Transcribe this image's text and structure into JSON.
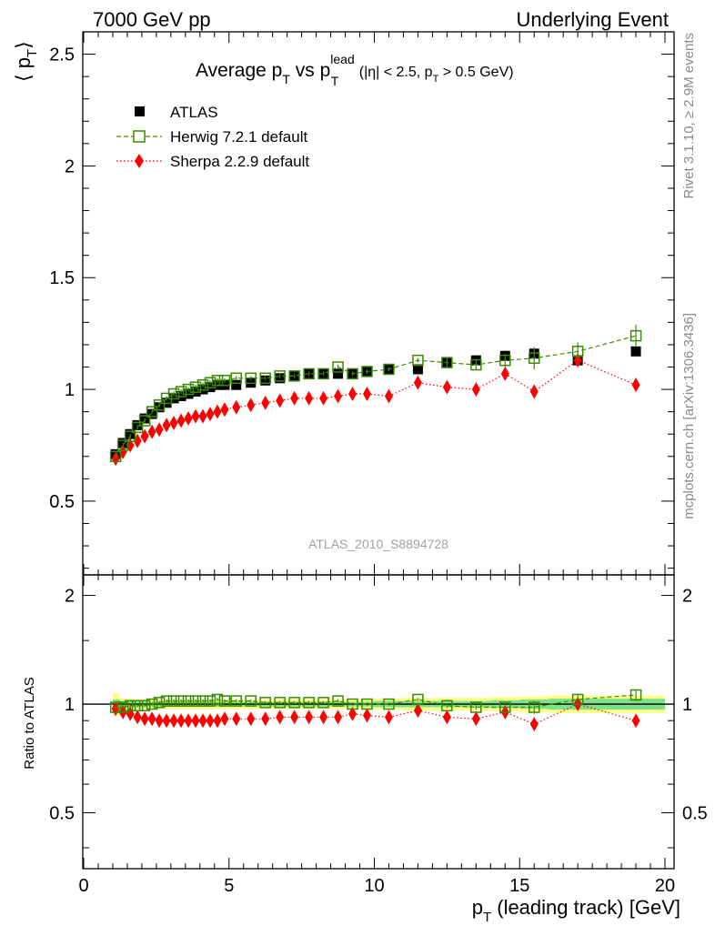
{
  "header": {
    "left": "7000 GeV pp",
    "right": "Underlying Event"
  },
  "side_labels": {
    "rivet": "Rivet 3.1.10, ≥ 2.9M events",
    "mcplots": "mcplots.cern.ch [arXiv:1306.3436]"
  },
  "analysis_id": "ATLAS_2010_S8894728",
  "colors": {
    "atlas": "#000000",
    "herwig": "#3a8a00",
    "sherpa": "#ff0000",
    "band_outer": "#ffff80",
    "band_inner": "#7fe08a"
  },
  "chart_data": [
    {
      "type": "scatter",
      "panel": "main",
      "title": {
        "main": "Average p",
        "main_sub": "T",
        "vs": " vs p",
        "vs_sup": "lead",
        "vs_sub": "T",
        "cuts_open": " (|η| < 2.5, p",
        "cuts_sub": "T",
        "cuts_close": " > 0.5 GeV)"
      },
      "ylabel": {
        "open": "⟨ p",
        "sub": "T",
        "close": "⟩"
      },
      "xlim": [
        0,
        20
      ],
      "ylim": [
        0.17,
        2.6
      ],
      "yticks": [
        {
          "value": 0.5,
          "label": "0.5"
        },
        {
          "value": 1,
          "label": "1"
        },
        {
          "value": 1.5,
          "label": "1.5"
        },
        {
          "value": 2,
          "label": "2"
        },
        {
          "value": 2.5,
          "label": "2.5"
        }
      ],
      "x": [
        1.1,
        1.35,
        1.6,
        1.85,
        2.1,
        2.35,
        2.6,
        2.85,
        3.1,
        3.35,
        3.6,
        3.85,
        4.1,
        4.35,
        4.6,
        4.85,
        5.25,
        5.75,
        6.25,
        6.75,
        7.25,
        7.75,
        8.25,
        8.75,
        9.25,
        9.75,
        10.5,
        11.5,
        12.5,
        13.5,
        14.5,
        15.5,
        17.0,
        19.0
      ],
      "series": [
        {
          "name": "ATLAS",
          "marker": "filled-square",
          "values": [
            0.71,
            0.76,
            0.8,
            0.84,
            0.87,
            0.89,
            0.92,
            0.94,
            0.96,
            0.97,
            0.98,
            0.99,
            1.0,
            1.01,
            1.02,
            1.02,
            1.02,
            1.03,
            1.04,
            1.05,
            1.06,
            1.07,
            1.07,
            1.07,
            1.07,
            1.08,
            1.09,
            1.09,
            1.12,
            1.13,
            1.15,
            1.16,
            1.13,
            1.17
          ]
        },
        {
          "name": "Herwig 7.2.1 default",
          "marker": "open-square",
          "line": "dashed",
          "values": [
            0.7,
            0.75,
            0.79,
            0.83,
            0.86,
            0.9,
            0.93,
            0.96,
            0.98,
            0.99,
            1.0,
            1.01,
            1.02,
            1.03,
            1.04,
            1.04,
            1.05,
            1.05,
            1.05,
            1.06,
            1.06,
            1.07,
            1.07,
            1.1,
            1.07,
            1.08,
            1.09,
            1.13,
            1.12,
            1.11,
            1.13,
            1.14,
            1.17,
            1.24
          ],
          "errors": [
            0.01,
            0.01,
            0.01,
            0.01,
            0.01,
            0.01,
            0.01,
            0.01,
            0.01,
            0.01,
            0.01,
            0.01,
            0.01,
            0.01,
            0.01,
            0.01,
            0.01,
            0.01,
            0.01,
            0.01,
            0.01,
            0.01,
            0.01,
            0.01,
            0.01,
            0.01,
            0.01,
            0.01,
            0.02,
            0.02,
            0.03,
            0.05,
            0.04,
            0.05
          ]
        },
        {
          "name": "Sherpa 2.2.9 default",
          "marker": "filled-diamond",
          "line": "dotted",
          "values": [
            0.69,
            0.72,
            0.75,
            0.77,
            0.79,
            0.81,
            0.82,
            0.84,
            0.85,
            0.86,
            0.87,
            0.88,
            0.88,
            0.89,
            0.9,
            0.91,
            0.92,
            0.93,
            0.94,
            0.95,
            0.96,
            0.96,
            0.96,
            0.97,
            0.98,
            0.98,
            0.97,
            1.03,
            1.01,
            1.0,
            1.07,
            0.99,
            1.13,
            1.02
          ],
          "errors": [
            0.01,
            0.01,
            0.01,
            0.01,
            0.01,
            0.01,
            0.01,
            0.01,
            0.01,
            0.01,
            0.01,
            0.01,
            0.01,
            0.01,
            0.01,
            0.01,
            0.01,
            0.01,
            0.01,
            0.01,
            0.01,
            0.01,
            0.01,
            0.01,
            0.01,
            0.01,
            0.01,
            0.02,
            0.02,
            0.02,
            0.02,
            0.03,
            0.03,
            0.03
          ]
        }
      ],
      "legend_position": "top-left"
    },
    {
      "type": "scatter",
      "panel": "ratio",
      "ylabel": "Ratio to ATLAS",
      "xlabel": {
        "open": "p",
        "sub": "T",
        "close": " (leading track) [GeV]"
      },
      "xlim": [
        0,
        20
      ],
      "ylim": [
        0.35,
        2.28
      ],
      "log_y": true,
      "xticks": [
        {
          "value": 0,
          "label": "0"
        },
        {
          "value": 5,
          "label": "5"
        },
        {
          "value": 10,
          "label": "10"
        },
        {
          "value": 15,
          "label": "15"
        },
        {
          "value": 20,
          "label": "20"
        }
      ],
      "yticks": [
        {
          "value": 0.5,
          "label": "0.5"
        },
        {
          "value": 1,
          "label": "1"
        },
        {
          "value": 2,
          "label": "2"
        }
      ],
      "band_bins": [
        1.0,
        1.25,
        1.5,
        1.75,
        2.0,
        2.25,
        2.5,
        2.75,
        3.0,
        3.25,
        3.5,
        3.75,
        4.0,
        4.25,
        4.5,
        4.75,
        5.0,
        5.5,
        6.0,
        6.5,
        7.0,
        7.5,
        8.0,
        8.5,
        9.0,
        9.5,
        10.0,
        11.0,
        12.0,
        13.0,
        14.0,
        15.0,
        16.0,
        18.0,
        20.0
      ],
      "band_outer": [
        0.07,
        0.035,
        0.035,
        0.03,
        0.03,
        0.03,
        0.03,
        0.03,
        0.03,
        0.03,
        0.03,
        0.03,
        0.03,
        0.03,
        0.03,
        0.03,
        0.03,
        0.03,
        0.03,
        0.03,
        0.03,
        0.03,
        0.03,
        0.03,
        0.03,
        0.03,
        0.035,
        0.04,
        0.04,
        0.04,
        0.045,
        0.05,
        0.055,
        0.055
      ],
      "band_inner": [
        0.03,
        0.02,
        0.02,
        0.015,
        0.015,
        0.015,
        0.015,
        0.015,
        0.015,
        0.015,
        0.015,
        0.015,
        0.015,
        0.015,
        0.015,
        0.015,
        0.015,
        0.015,
        0.015,
        0.015,
        0.015,
        0.015,
        0.015,
        0.015,
        0.015,
        0.015,
        0.02,
        0.02,
        0.02,
        0.02,
        0.025,
        0.03,
        0.035,
        0.035
      ],
      "x": [
        1.1,
        1.35,
        1.6,
        1.85,
        2.1,
        2.35,
        2.6,
        2.85,
        3.1,
        3.35,
        3.6,
        3.85,
        4.1,
        4.35,
        4.6,
        4.85,
        5.25,
        5.75,
        6.25,
        6.75,
        7.25,
        7.75,
        8.25,
        8.75,
        9.25,
        9.75,
        10.5,
        11.5,
        12.5,
        13.5,
        14.5,
        15.5,
        17.0,
        19.0
      ],
      "series": [
        {
          "name": "Herwig 7.2.1 default",
          "marker": "open-square",
          "line": "dashed",
          "values": [
            0.98,
            0.98,
            0.99,
            0.99,
            0.99,
            1.0,
            1.01,
            1.02,
            1.02,
            1.02,
            1.02,
            1.02,
            1.02,
            1.02,
            1.03,
            1.02,
            1.02,
            1.02,
            1.01,
            1.01,
            1.01,
            1.01,
            1.01,
            1.02,
            1.0,
            1.0,
            1.0,
            1.03,
            0.99,
            0.98,
            0.98,
            0.98,
            1.03,
            1.06
          ],
          "errors": [
            0.01,
            0.01,
            0.01,
            0.01,
            0.01,
            0.01,
            0.01,
            0.01,
            0.01,
            0.01,
            0.01,
            0.01,
            0.01,
            0.01,
            0.01,
            0.01,
            0.01,
            0.01,
            0.01,
            0.01,
            0.01,
            0.01,
            0.01,
            0.01,
            0.01,
            0.01,
            0.01,
            0.01,
            0.015,
            0.015,
            0.02,
            0.04,
            0.03,
            0.04
          ]
        },
        {
          "name": "Sherpa 2.2.9 default",
          "marker": "filled-diamond",
          "line": "dotted",
          "values": [
            0.97,
            0.95,
            0.94,
            0.92,
            0.91,
            0.91,
            0.9,
            0.9,
            0.9,
            0.9,
            0.9,
            0.9,
            0.9,
            0.9,
            0.9,
            0.91,
            0.91,
            0.91,
            0.91,
            0.92,
            0.92,
            0.92,
            0.92,
            0.92,
            0.94,
            0.93,
            0.92,
            0.96,
            0.92,
            0.91,
            0.95,
            0.88,
            1.0,
            0.9
          ],
          "errors": [
            0.01,
            0.01,
            0.01,
            0.01,
            0.01,
            0.01,
            0.01,
            0.01,
            0.01,
            0.01,
            0.01,
            0.01,
            0.01,
            0.01,
            0.01,
            0.01,
            0.01,
            0.01,
            0.01,
            0.01,
            0.01,
            0.01,
            0.01,
            0.01,
            0.01,
            0.01,
            0.01,
            0.015,
            0.015,
            0.015,
            0.02,
            0.02,
            0.03,
            0.03
          ]
        }
      ]
    }
  ]
}
